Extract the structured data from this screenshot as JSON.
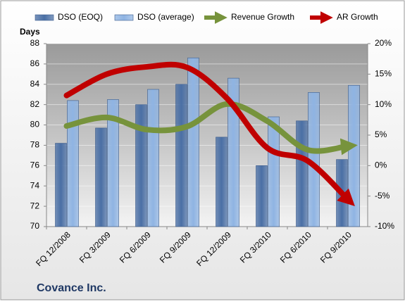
{
  "chart_data": {
    "type": "bar-line",
    "y_label": "Days",
    "footer": "Covance Inc.",
    "categories": [
      "FQ 12/2008",
      "FQ 3/2009",
      "FQ 6/2009",
      "FQ 9/2009",
      "FQ 12/2009",
      "FQ 3/2010",
      "FQ 6/2010",
      "FQ 9/2010"
    ],
    "series": [
      {
        "name": "DSO (EOQ)",
        "color": "#4a6fa5",
        "kind": "bar",
        "values": [
          78.2,
          79.7,
          82.0,
          84.0,
          78.8,
          76.0,
          80.4,
          76.6
        ]
      },
      {
        "name": "DSO (average)",
        "color": "#8fb4e3",
        "kind": "bar",
        "values": [
          82.4,
          82.5,
          83.5,
          86.6,
          84.6,
          80.8,
          83.2,
          83.9
        ]
      },
      {
        "name": "Revenue Growth",
        "color": "#77933c",
        "kind": "line",
        "axis": "y2",
        "values": [
          6.5,
          7.9,
          5.9,
          6.4,
          10.1,
          7.3,
          2.6,
          3.2
        ]
      },
      {
        "name": "AR Growth",
        "color": "#c00000",
        "kind": "line",
        "axis": "y2",
        "values": [
          11.5,
          15.0,
          16.2,
          16.1,
          11.0,
          2.9,
          0.8,
          -5.5
        ]
      }
    ],
    "ylim": [
      70,
      88
    ],
    "yticks": [
      70,
      72,
      74,
      76,
      78,
      80,
      82,
      84,
      86,
      88
    ],
    "y2lim": [
      -10,
      20
    ],
    "y2ticks": [
      {
        "value": -10,
        "label": "-10%"
      },
      {
        "value": -5,
        "label": "-5%"
      },
      {
        "value": 0,
        "label": "0%"
      },
      {
        "value": 5,
        "label": "5%"
      },
      {
        "value": 10,
        "label": "10%"
      },
      {
        "value": 15,
        "label": "15%"
      },
      {
        "value": 20,
        "label": "20%"
      }
    ],
    "grid": true
  }
}
